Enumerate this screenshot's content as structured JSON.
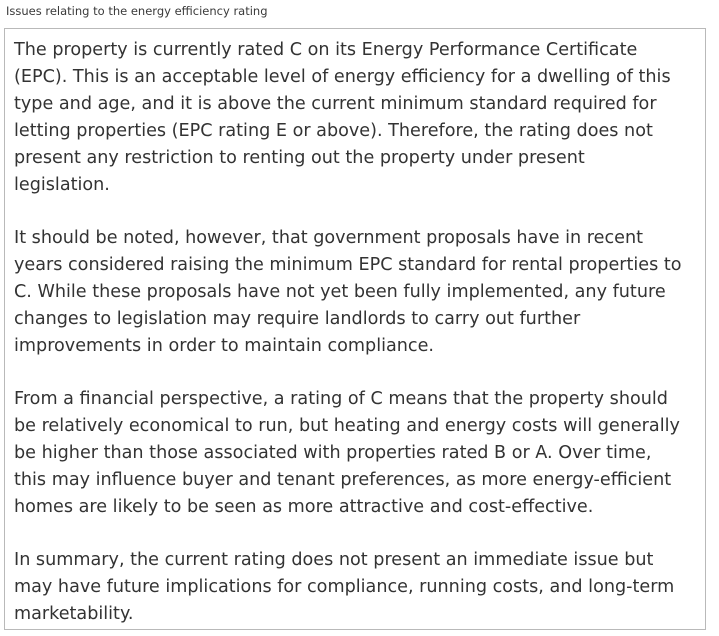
{
  "field": {
    "label": "Issues relating to the energy efficiency rating",
    "paragraphs": [
      "The property is currently rated C on its Energy Performance Certificate\n(EPC). This is an acceptable level of energy efficiency for a dwelling of this\ntype and age, and it is above the current minimum standard required for\nletting properties (EPC rating E or above). Therefore, the rating does not\npresent any restriction to renting out the property under present\nlegislation.",
      "It should be noted, however, that government proposals have in recent\nyears considered raising the minimum EPC standard for rental properties to\nC. While these proposals have not yet been fully implemented, any future\nchanges to legislation may require landlords to carry out further\nimprovements in order to maintain compliance.",
      "From a financial perspective, a rating of C means that the property should\nbe relatively economical to run, but heating and energy costs will generally\nbe higher than those associated with properties rated B or A. Over time,\nthis may influence buyer and tenant preferences, as more energy-efficient\nhomes are likely to be seen as more attractive and cost-effective.",
      "In summary, the current rating does not present an immediate issue but\nmay have future implications for compliance, running costs, and long-term\nmarketability."
    ]
  }
}
